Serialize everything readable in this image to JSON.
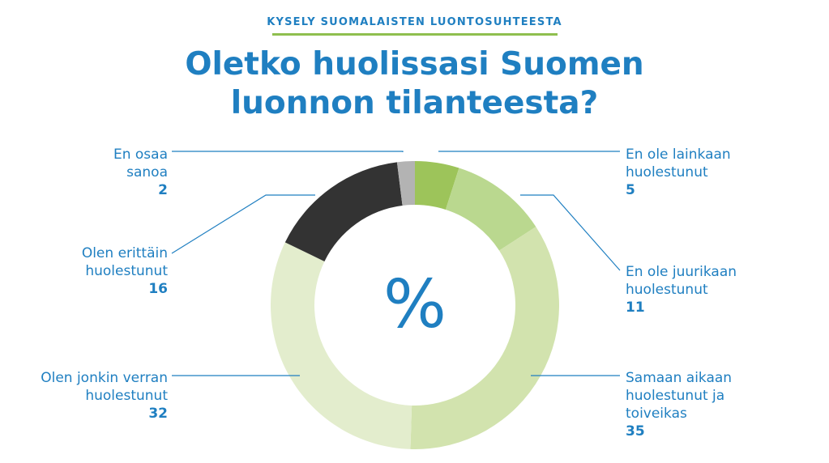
{
  "header": {
    "kicker": "KYSELY SUOMALAISTEN LUONTOSUHTEESTA",
    "title_line1": "Oletko huolissasi Suomen",
    "title_line2": "luonnon tilanteesta?"
  },
  "chart_data": {
    "type": "pie",
    "center_label": "%",
    "categories": [
      "En ole lainkaan huolestunut",
      "En ole juurikaan huolestunut",
      "Samaan aikaan huolestunut ja toiveikas",
      "Olen jonkin verran huolestunut",
      "Olen erittäin huolestunut",
      "En osaa sanoa"
    ],
    "values": [
      5,
      11,
      35,
      32,
      16,
      2
    ],
    "colors": [
      "#9dc45a",
      "#bad88f",
      "#d2e3ae",
      "#e3edcd",
      "#333333",
      "#b3b3b3"
    ],
    "label_lines": [
      [
        "En ole lainkaan",
        "huolestunut"
      ],
      [
        "En ole juurikaan",
        "huolestunut"
      ],
      [
        "Samaan aikaan",
        "huolestunut ja",
        "toiveikas"
      ],
      [
        "Olen jonkin verran",
        "huolestunut"
      ],
      [
        "Olen erittäin",
        "huolestunut"
      ],
      [
        "En osaa",
        "sanoa"
      ]
    ]
  }
}
